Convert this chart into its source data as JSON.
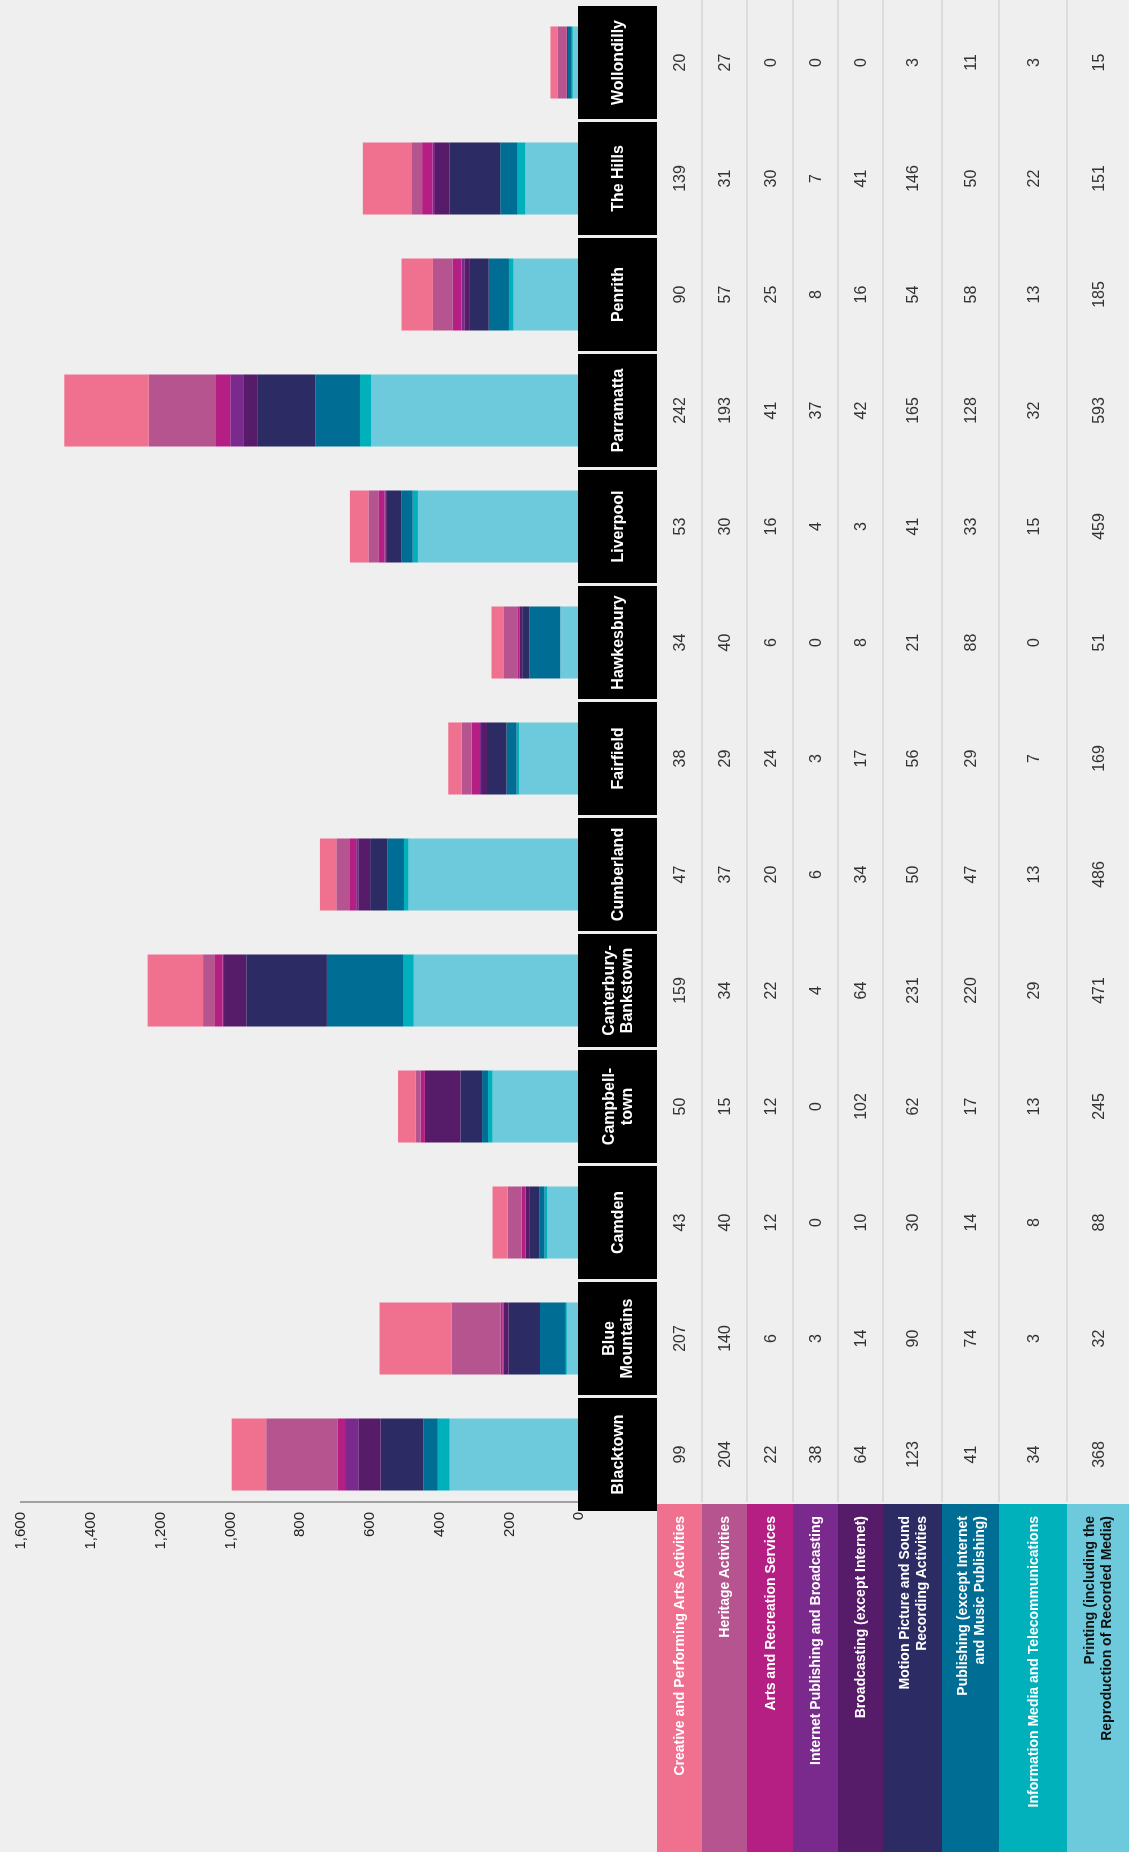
{
  "chart_data": {
    "type": "bar",
    "orientation": "horizontal",
    "stacked": true,
    "data_labels": true,
    "legend": "bottom",
    "xlim": [
      1600,
      0
    ],
    "xticks": [
      {
        "value": 1600,
        "label": "1,600"
      },
      {
        "value": 1400,
        "label": "1,400"
      },
      {
        "value": 1200,
        "label": "1,200"
      },
      {
        "value": 1000,
        "label": "1,000"
      },
      800,
      600,
      400,
      200,
      0
    ],
    "categories": [
      "Wollondilly",
      "The Hills",
      "Penrith",
      "Parramatta",
      "Liverpool",
      "Hawkesbury",
      "Fairfield",
      "Cumberland",
      "Canterbury-Bankstown",
      "Campbell-town",
      "Camden",
      "Blue Mountains",
      "Blacktown"
    ],
    "series": [
      {
        "name": "Printing (including the Reproduction of Recorded Media)",
        "color": "#6dcadc",
        "values": [
          15,
          151,
          185,
          593,
          459,
          51,
          169,
          486,
          471,
          245,
          88,
          32,
          368
        ]
      },
      {
        "name": "Information Media and Telecommunications",
        "color": "#00b1bb",
        "values": [
          3,
          22,
          13,
          32,
          15,
          0,
          7,
          13,
          29,
          13,
          8,
          3,
          34
        ]
      },
      {
        "name": "Publishing (except Internet and Music Publishing)",
        "color": "#006d94",
        "values": [
          11,
          50,
          58,
          128,
          33,
          88,
          29,
          47,
          220,
          17,
          14,
          74,
          41
        ]
      },
      {
        "name": "Motion Picture and Sound Recording Activities",
        "color": "#2c2b63",
        "values": [
          3,
          146,
          54,
          165,
          41,
          21,
          56,
          50,
          231,
          62,
          30,
          90,
          123
        ]
      },
      {
        "name": "Broadcasting (except Internet)",
        "color": "#561b69",
        "values": [
          0,
          41,
          16,
          42,
          3,
          8,
          17,
          34,
          64,
          102,
          10,
          14,
          64
        ]
      },
      {
        "name": "Internet Publishing and Broadcasting",
        "color": "#7a2a8c",
        "values": [
          0,
          7,
          8,
          37,
          4,
          0,
          3,
          6,
          4,
          0,
          0,
          3,
          38
        ]
      },
      {
        "name": "Arts and Recreation Services",
        "color": "#b51f84",
        "values": [
          0,
          30,
          25,
          41,
          16,
          6,
          24,
          20,
          22,
          12,
          12,
          6,
          22
        ]
      },
      {
        "name": "Heritage Activities",
        "color": "#b65490",
        "values": [
          27,
          31,
          57,
          193,
          30,
          40,
          29,
          37,
          34,
          15,
          40,
          140,
          204
        ]
      },
      {
        "name": "Creative and Performing Arts Activities",
        "color": "#f07090",
        "values": [
          20,
          139,
          90,
          242,
          53,
          34,
          38,
          47,
          159,
          50,
          43,
          207,
          99
        ]
      }
    ]
  }
}
